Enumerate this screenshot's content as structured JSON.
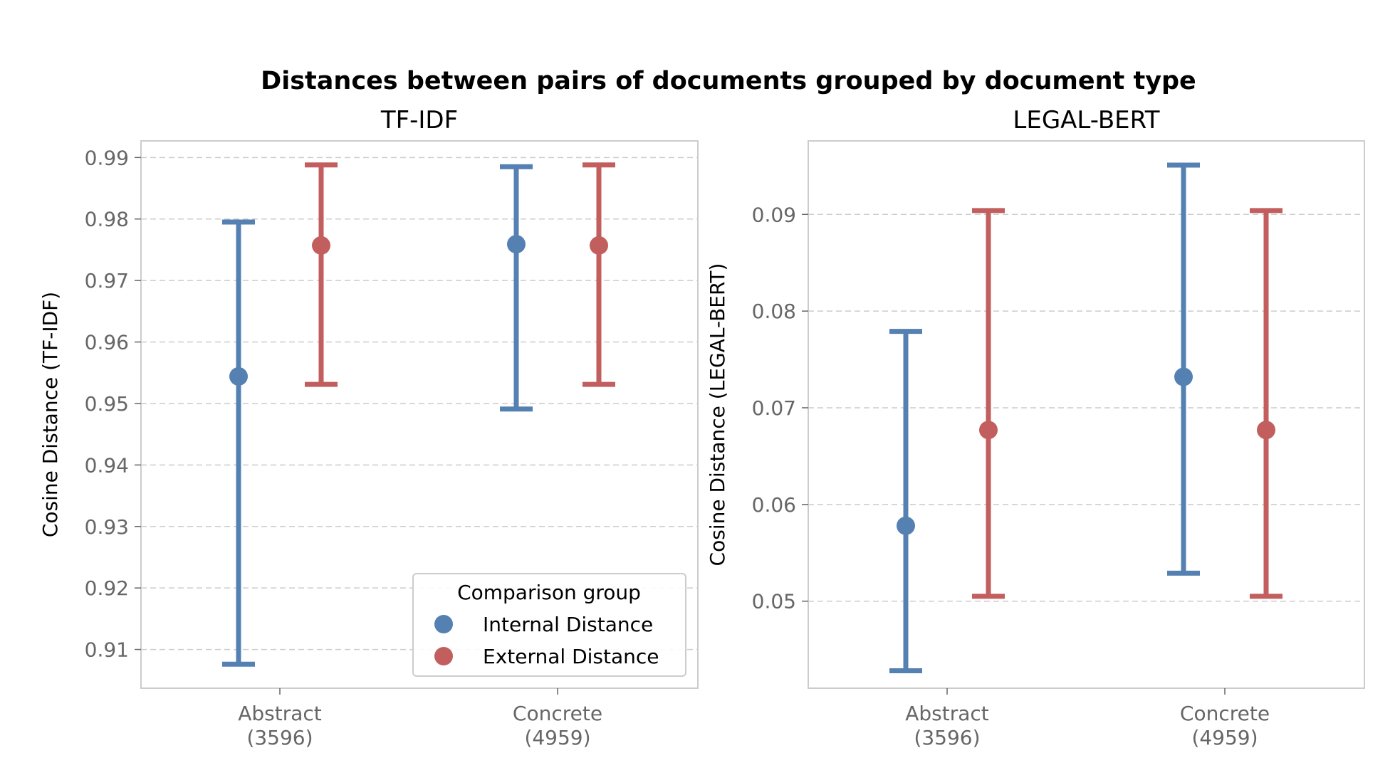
{
  "title": "Distances between pairs of documents grouped by document type",
  "colors": {
    "internal": "#5580B2",
    "external": "#C25E5E",
    "grid": "#cccccc",
    "spine": "#cccccc",
    "tick_text": "#666666"
  },
  "legend": {
    "title": "Comparison group",
    "placement": "lower-right (left panel)",
    "entries": [
      "Internal Distance",
      "External Distance"
    ]
  },
  "chart_data": [
    {
      "type": "errorbar",
      "title": "TF-IDF",
      "ylabel": "Cosine Distance (TF-IDF)",
      "xlabel": "",
      "ylim": [
        0.9037,
        0.9927
      ],
      "yticks": [
        "0.91",
        "0.92",
        "0.93",
        "0.94",
        "0.95",
        "0.96",
        "0.97",
        "0.98",
        "0.99"
      ],
      "grid": "y-dashed",
      "categories": [
        {
          "name": "Abstract",
          "count": "(3596)"
        },
        {
          "name": "Concrete",
          "count": "(4959)"
        }
      ],
      "series": [
        {
          "name": "Internal Distance",
          "mean": [
            0.9544,
            0.9759
          ],
          "lower": [
            0.9076,
            0.9491
          ],
          "upper": [
            0.9795,
            0.9885
          ]
        },
        {
          "name": "External Distance",
          "mean": [
            0.9757,
            0.9757
          ],
          "lower": [
            0.9531,
            0.9531
          ],
          "upper": [
            0.9888,
            0.9888
          ]
        }
      ]
    },
    {
      "type": "errorbar",
      "title": "LEGAL-BERT",
      "ylabel": "Cosine Distance (LEGAL-BERT)",
      "xlabel": "",
      "ylim": [
        0.041,
        0.0976
      ],
      "yticks": [
        "0.05",
        "0.06",
        "0.07",
        "0.08",
        "0.09"
      ],
      "grid": "y-dashed",
      "categories": [
        {
          "name": "Abstract",
          "count": "(3596)"
        },
        {
          "name": "Concrete",
          "count": "(4959)"
        }
      ],
      "series": [
        {
          "name": "Internal Distance",
          "mean": [
            0.0578,
            0.0732
          ],
          "lower": [
            0.0428,
            0.0529
          ],
          "upper": [
            0.0779,
            0.0951
          ]
        },
        {
          "name": "External Distance",
          "mean": [
            0.0677,
            0.0677
          ],
          "lower": [
            0.0505,
            0.0505
          ],
          "upper": [
            0.0904,
            0.0904
          ]
        }
      ]
    }
  ]
}
